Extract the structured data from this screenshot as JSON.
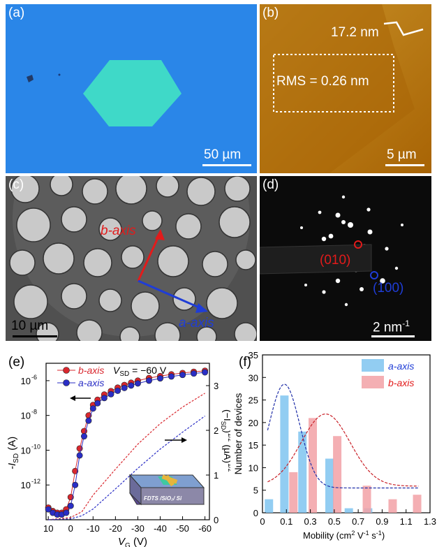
{
  "panel_a": {
    "label": "(a)",
    "scalebar": "50 µm",
    "colors": {
      "background": "#2a86e8",
      "flake": "#3fd9c8"
    }
  },
  "panel_b": {
    "label": "(b)",
    "height_label": "17.2 nm",
    "rms_label": "RMS = 0.26 nm",
    "scalebar": "5 µm",
    "colors": {
      "background": "#c98a1a",
      "flake": "#ad6a0a"
    }
  },
  "panel_c": {
    "label": "(c)",
    "b_axis": "b-axis",
    "a_axis": "a-axis",
    "scalebar": "10 µm",
    "colors": {
      "b_axis": "#e21b1b",
      "a_axis": "#1f3dd6"
    }
  },
  "panel_d": {
    "label": "(d)",
    "spot_red": "(010)",
    "spot_blue": "(100)",
    "scalebar_num": "2 nm",
    "scalebar_exp": "-1"
  },
  "panel_e": {
    "label": "(e)",
    "legend_b": "b-axis",
    "legend_a": "a-axis",
    "vsd_label": "V",
    "vsd_sub": "SD",
    "vsd_value": " = −60 V",
    "ylabel_left": "-I",
    "ylabel_left_sub": "SD",
    "ylabel_left_unit": " (A)",
    "ylabel_right": "(−I",
    "ylabel_right_sub": "SD",
    "ylabel_right_tail": ")",
    "ylabel_right_unit": " (μA)",
    "xlabel": "V",
    "xlabel_sub": "G",
    "xlabel_unit": " (V)",
    "inset_text": "FDTS /SiO₂/ Si",
    "xticks": [
      "10",
      "0",
      "-10",
      "-20",
      "-30",
      "-40",
      "-50",
      "-60"
    ],
    "yticks_left": [
      "10",
      "10",
      "10",
      "10"
    ],
    "yticks_left_exp": [
      "-6",
      "-8",
      "-10",
      "-12"
    ],
    "yticks_right": [
      "0",
      "1",
      "2",
      "3"
    ]
  },
  "chart_data": [
    {
      "type": "line",
      "panel": "(e)",
      "x": [
        10,
        8,
        6,
        4,
        2,
        0,
        -2,
        -4,
        -6,
        -8,
        -10,
        -12,
        -15,
        -18,
        -21,
        -24,
        -27,
        -30,
        -35,
        -40,
        -45,
        -50,
        -55,
        -60
      ],
      "xlim": [
        11,
        -62
      ],
      "ylim_log": [
        -14,
        -5
      ],
      "series": [
        {
          "name": "b-axis",
          "axis": "left",
          "color": "#d9272e",
          "log10_values": [
            -13.3,
            -13.5,
            -13.6,
            -13.6,
            -13.4,
            -12.7,
            -11.2,
            -9.9,
            -8.9,
            -8.0,
            -7.4,
            -7.1,
            -6.8,
            -6.6,
            -6.4,
            -6.25,
            -6.12,
            -6.0,
            -5.85,
            -5.74,
            -5.64,
            -5.56,
            -5.49,
            -5.43
          ]
        },
        {
          "name": "a-axis",
          "axis": "left",
          "color": "#2a2ec5",
          "log10_values": [
            -13.4,
            -13.6,
            -13.7,
            -13.7,
            -13.6,
            -13.2,
            -12.0,
            -10.3,
            -9.2,
            -8.3,
            -7.6,
            -7.3,
            -7.0,
            -6.78,
            -6.58,
            -6.42,
            -6.28,
            -6.16,
            -6.0,
            -5.87,
            -5.76,
            -5.67,
            -5.59,
            -5.52
          ]
        },
        {
          "name": "b-axis sqrt",
          "axis": "right",
          "color": "#d9272e",
          "x": [
            10,
            0,
            -5,
            -10,
            -20,
            -30,
            -40,
            -50,
            -60
          ],
          "values": [
            0.0,
            0.05,
            0.18,
            0.55,
            1.13,
            1.69,
            2.15,
            2.52,
            2.83
          ]
        },
        {
          "name": "a-axis sqrt",
          "axis": "right",
          "color": "#2a2ec5",
          "x": [
            10,
            0,
            -5,
            -10,
            -20,
            -30,
            -40,
            -50,
            -60
          ],
          "values": [
            0.0,
            0.02,
            0.09,
            0.24,
            0.69,
            1.15,
            1.58,
            1.96,
            2.32
          ]
        }
      ],
      "right_ylim": [
        0,
        3.5
      ]
    },
    {
      "type": "bar",
      "panel": "(f)",
      "xlabel": "Mobility",
      "ylabel": "Number of devices",
      "xlim": [
        0,
        1.3
      ],
      "ylim": [
        0,
        35
      ],
      "xticks": [
        "0.0",
        "0.15",
        "0.3",
        "0.45",
        "0.6",
        "0.75",
        "0.9",
        "1.05",
        "1.2",
        "1.3"
      ],
      "xticks_shown": [
        "0",
        "0.1",
        "0.3",
        "0.5",
        "0.7",
        "0.9",
        "1.1",
        "1.3"
      ],
      "yticks": [
        "0",
        "5",
        "10",
        "15",
        "20",
        "25",
        "30",
        "35"
      ],
      "series": [
        {
          "name": "a-axis",
          "color": "#7fc4f0",
          "centers": [
            0.05,
            0.17,
            0.31,
            0.52,
            0.67,
            0.82
          ],
          "values": [
            3,
            26,
            18,
            12,
            1,
            1
          ],
          "fit": {
            "mu": 0.17,
            "sigma": 0.12,
            "amp": 23,
            "base": 5.5
          }
        },
        {
          "name": "b-axis",
          "color": "#f2a1a6",
          "centers": [
            0.24,
            0.39,
            0.58,
            0.81,
            1.01,
            1.2
          ],
          "values": [
            9,
            21,
            17,
            6,
            3,
            4
          ],
          "fit": {
            "mu": 0.49,
            "sigma": 0.19,
            "amp": 16,
            "base": 5.9
          }
        }
      ]
    }
  ],
  "panel_f": {
    "label": "(f)",
    "legend_a": "a-axis",
    "legend_b": "b-axis",
    "xlabel": "Mobility (cm",
    "xlabel_exp1": "2",
    "xlabel_mid": " V",
    "xlabel_exp2": "-1",
    "xlabel_s": " s",
    "xlabel_exp3": "-1",
    "xlabel_end": ")",
    "ylabel": "Number of devices",
    "xticks": [
      "0",
      "0.1",
      "0.3",
      "0.5",
      "0.7",
      "0.9",
      "1.1",
      "1.3"
    ],
    "yticks": [
      "0",
      "5",
      "10",
      "15",
      "20",
      "25",
      "30",
      "35"
    ]
  }
}
